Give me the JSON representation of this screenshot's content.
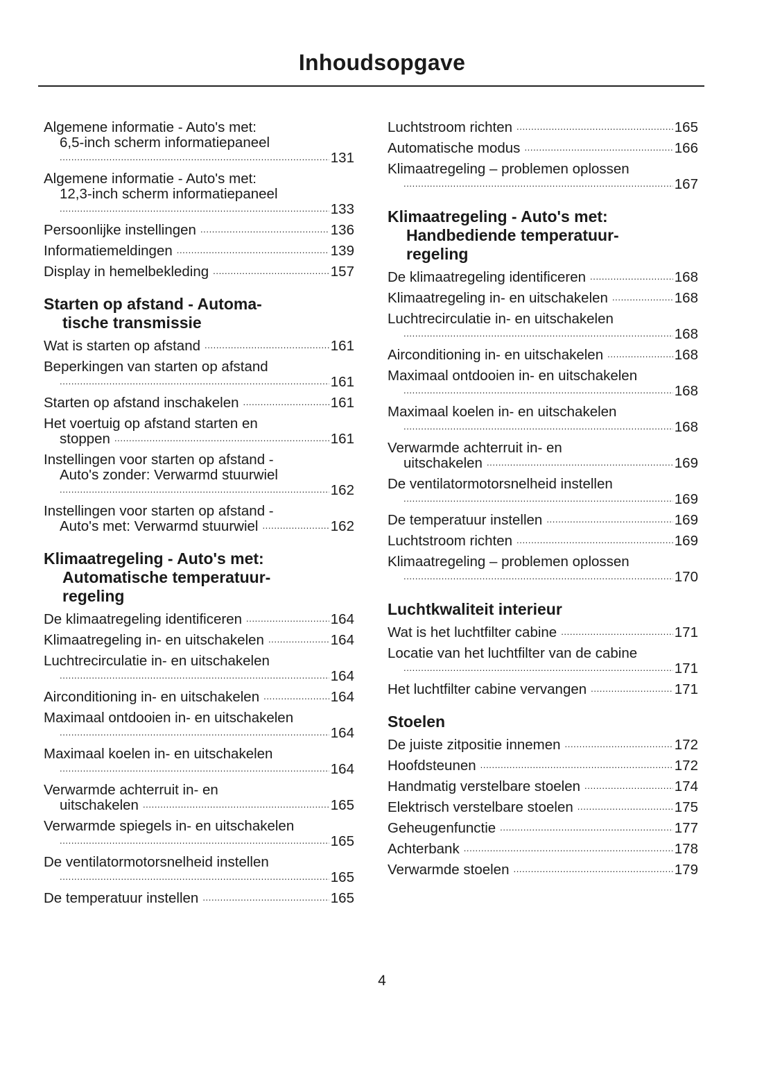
{
  "title": "Inhoudsopgave",
  "page_number": "4",
  "columns": [
    {
      "sections": [
        {
          "heading": [],
          "entries": [
            {
              "lines": [
                "Algemene informatie - Auto's met:",
                "6,5-inch scherm informatiepaneel"
              ],
              "page": "131",
              "own_line": true
            },
            {
              "lines": [
                "Algemene informatie - Auto's met:",
                "12,3-inch scherm informatiepaneel"
              ],
              "page": "133",
              "own_line": true
            },
            {
              "lines": [
                "Persoonlijke instellingen"
              ],
              "page": "136",
              "own_line": false
            },
            {
              "lines": [
                "Informatiemeldingen"
              ],
              "page": "139",
              "own_line": false
            },
            {
              "lines": [
                "Display in hemelbekleding"
              ],
              "page": "157",
              "own_line": false
            }
          ]
        },
        {
          "heading": [
            "Starten op afstand - Automa-",
            "tische transmissie"
          ],
          "entries": [
            {
              "lines": [
                "Wat is starten op afstand"
              ],
              "page": "161",
              "own_line": false
            },
            {
              "lines": [
                "Beperkingen van starten op afstand"
              ],
              "page": "161",
              "own_line": true
            },
            {
              "lines": [
                "Starten op afstand inschakelen"
              ],
              "page": "161",
              "own_line": false
            },
            {
              "lines": [
                "Het voertuig op afstand starten en",
                "stoppen"
              ],
              "page": "161",
              "own_line": false
            },
            {
              "lines": [
                "Instellingen voor starten op afstand -",
                "Auto's zonder: Verwarmd stuurwiel"
              ],
              "page": "162",
              "own_line": true
            },
            {
              "lines": [
                "Instellingen voor starten op afstand -",
                "Auto's met: Verwarmd stuurwiel"
              ],
              "page": "162",
              "own_line": false
            }
          ]
        },
        {
          "heading": [
            "Klimaatregeling - Auto's met:",
            "Automatische temperatuur-",
            "regeling"
          ],
          "entries": [
            {
              "lines": [
                "De klimaatregeling identificeren"
              ],
              "page": "164",
              "own_line": false
            },
            {
              "lines": [
                "Klimaatregeling in- en uitschakelen"
              ],
              "page": "164",
              "own_line": false
            },
            {
              "lines": [
                "Luchtrecirculatie in- en uitschakelen"
              ],
              "page": "164",
              "own_line": true
            },
            {
              "lines": [
                "Airconditioning in- en uitschakelen"
              ],
              "page": "164",
              "own_line": false
            },
            {
              "lines": [
                "Maximaal ontdooien in- en uitschakelen"
              ],
              "page": "164",
              "own_line": true
            },
            {
              "lines": [
                "Maximaal koelen in- en uitschakelen"
              ],
              "page": "164",
              "own_line": true
            },
            {
              "lines": [
                "Verwarmde achterruit in- en",
                "uitschakelen"
              ],
              "page": "165",
              "own_line": false
            },
            {
              "lines": [
                "Verwarmde spiegels in- en uitschakelen"
              ],
              "page": "165",
              "own_line": true
            },
            {
              "lines": [
                "De ventilatormotorsnelheid instellen"
              ],
              "page": "165",
              "own_line": true
            },
            {
              "lines": [
                "De temperatuur instellen"
              ],
              "page": "165",
              "own_line": false
            }
          ]
        }
      ]
    },
    {
      "sections": [
        {
          "heading": [],
          "entries": [
            {
              "lines": [
                "Luchtstroom richten"
              ],
              "page": "165",
              "own_line": false
            },
            {
              "lines": [
                "Automatische modus"
              ],
              "page": "166",
              "own_line": false
            },
            {
              "lines": [
                "Klimaatregeling – problemen oplossen"
              ],
              "page": "167",
              "own_line": true
            }
          ]
        },
        {
          "heading": [
            "Klimaatregeling - Auto's met:",
            "Handbediende temperatuur-",
            "regeling"
          ],
          "entries": [
            {
              "lines": [
                "De klimaatregeling identificeren"
              ],
              "page": "168",
              "own_line": false
            },
            {
              "lines": [
                "Klimaatregeling in- en uitschakelen"
              ],
              "page": "168",
              "own_line": false
            },
            {
              "lines": [
                "Luchtrecirculatie in- en uitschakelen"
              ],
              "page": "168",
              "own_line": true
            },
            {
              "lines": [
                "Airconditioning in- en uitschakelen"
              ],
              "page": "168",
              "own_line": false
            },
            {
              "lines": [
                "Maximaal ontdooien in- en uitschakelen"
              ],
              "page": "168",
              "own_line": true
            },
            {
              "lines": [
                "Maximaal koelen in- en uitschakelen"
              ],
              "page": "168",
              "own_line": true
            },
            {
              "lines": [
                "Verwarmde achterruit in- en",
                "uitschakelen"
              ],
              "page": "169",
              "own_line": false
            },
            {
              "lines": [
                "De ventilatormotorsnelheid instellen"
              ],
              "page": "169",
              "own_line": true
            },
            {
              "lines": [
                "De temperatuur instellen"
              ],
              "page": "169",
              "own_line": false
            },
            {
              "lines": [
                "Luchtstroom richten"
              ],
              "page": "169",
              "own_line": false
            },
            {
              "lines": [
                "Klimaatregeling – problemen oplossen"
              ],
              "page": "170",
              "own_line": true
            }
          ]
        },
        {
          "heading": [
            "Luchtkwaliteit interieur"
          ],
          "entries": [
            {
              "lines": [
                "Wat is het luchtfilter cabine"
              ],
              "page": "171",
              "own_line": false
            },
            {
              "lines": [
                "Locatie van het luchtfilter van de cabine"
              ],
              "page": "171",
              "own_line": true
            },
            {
              "lines": [
                "Het luchtfilter cabine vervangen"
              ],
              "page": "171",
              "own_line": false
            }
          ]
        },
        {
          "heading": [
            "Stoelen"
          ],
          "entries": [
            {
              "lines": [
                "De juiste zitpositie innemen"
              ],
              "page": "172",
              "own_line": false
            },
            {
              "lines": [
                "Hoofdsteunen"
              ],
              "page": "172",
              "own_line": false
            },
            {
              "lines": [
                "Handmatig verstelbare stoelen"
              ],
              "page": "174",
              "own_line": false
            },
            {
              "lines": [
                "Elektrisch verstelbare stoelen"
              ],
              "page": "175",
              "own_line": false
            },
            {
              "lines": [
                "Geheugenfunctie"
              ],
              "page": "177",
              "own_line": false
            },
            {
              "lines": [
                "Achterbank"
              ],
              "page": "178",
              "own_line": false
            },
            {
              "lines": [
                "Verwarmde stoelen"
              ],
              "page": "179",
              "own_line": false
            }
          ]
        }
      ]
    }
  ]
}
